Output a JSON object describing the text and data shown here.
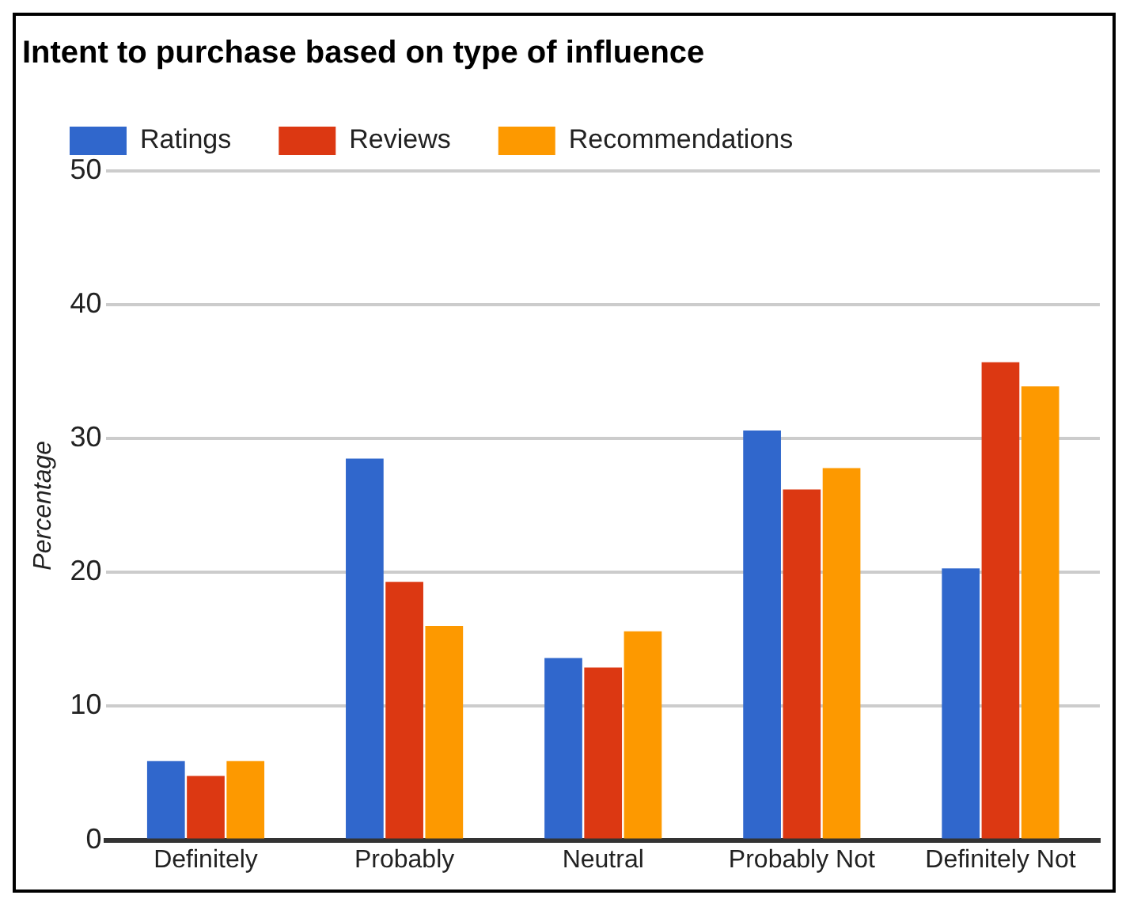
{
  "chart_data": {
    "type": "bar",
    "title": "Intent to purchase based on type of influence",
    "ylabel": "Percentage",
    "categories": [
      "Definitely",
      "Probably",
      "Neutral",
      "Probably Not",
      "Definitely Not"
    ],
    "series": [
      {
        "name": "Ratings",
        "color": "#3067cc",
        "values": [
          5.9,
          28.5,
          13.6,
          30.6,
          20.3
        ]
      },
      {
        "name": "Reviews",
        "color": "#dc3812",
        "values": [
          4.8,
          19.3,
          12.9,
          26.2,
          35.7
        ]
      },
      {
        "name": "Recommendations",
        "color": "#fd9900",
        "values": [
          5.9,
          16.0,
          15.6,
          27.8,
          33.9
        ]
      }
    ],
    "ylim": [
      0,
      50
    ],
    "yticks": [
      0,
      10,
      20,
      30,
      40,
      50
    ],
    "grid": "y",
    "legend": "top left"
  }
}
